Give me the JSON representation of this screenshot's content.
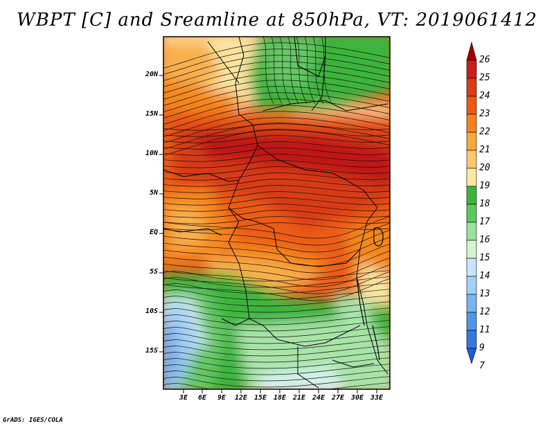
{
  "title": "WBPT [C] and Sreamline at 850hPa, VT: 2019061412",
  "credit": "GrADS: IGES/COLA",
  "lat_labels": [
    "20N",
    "15N",
    "10N",
    "5N",
    "EQ",
    "5S",
    "10S",
    "15S"
  ],
  "lon_labels": [
    "3E",
    "6E",
    "9E",
    "12E",
    "15E",
    "18E",
    "21E",
    "24E",
    "27E",
    "30E",
    "33E"
  ],
  "colorbar": {
    "levels": [
      "26",
      "25",
      "24",
      "23",
      "22",
      "21",
      "20",
      "19",
      "18",
      "17",
      "16",
      "15",
      "14",
      "13",
      "12",
      "11",
      "9",
      "7"
    ],
    "colors": [
      "#b30000",
      "#c81e1e",
      "#dc3c14",
      "#ee5a14",
      "#f5821e",
      "#f9a83c",
      "#fbc86e",
      "#fce8a0",
      "#3cb43c",
      "#5ac85a",
      "#9be09b",
      "#d2f5d2",
      "#c8e6fa",
      "#a0d2f8",
      "#78b4f0",
      "#5096e6",
      "#3278dc",
      "#1e5adc"
    ],
    "top_arrow_color": "#a00000",
    "bottom_arrow_color": "#1e5adc"
  },
  "map_colors": {
    "deep_red": "#c01818",
    "red": "#d83a18",
    "orange_red": "#ec5c18",
    "orange": "#f5891f",
    "light_orange": "#f9b04e",
    "pale_yellow": "#fce4a0",
    "green": "#3cb43c",
    "mid_green": "#66c866",
    "light_green": "#a8e4a8",
    "pale_cyan": "#d6f2ee",
    "light_blue": "#a6d0f4",
    "blue": "#7eb2ea"
  }
}
